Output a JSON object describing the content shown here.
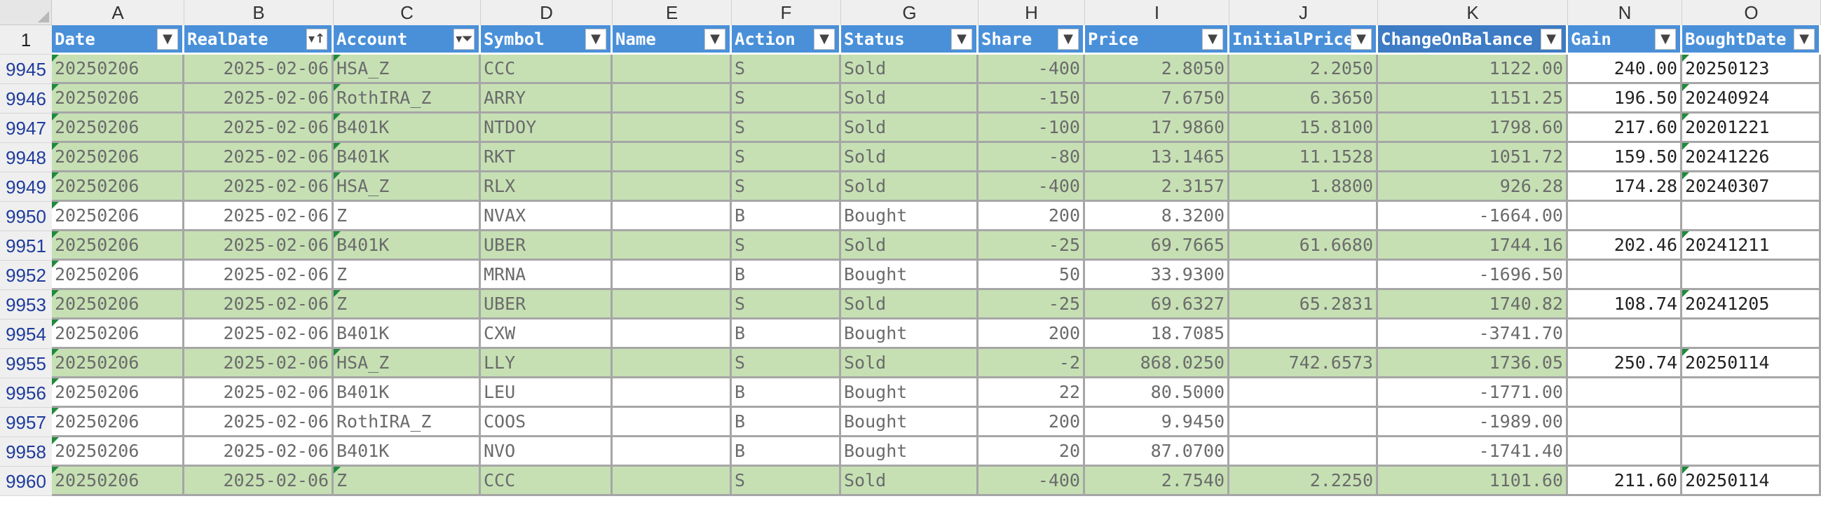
{
  "column_letters": [
    "A",
    "B",
    "C",
    "D",
    "E",
    "F",
    "G",
    "H",
    "I",
    "J",
    "K",
    "N",
    "O"
  ],
  "header_row_number": "1",
  "headers": [
    "Date",
    "RealDate",
    "Account",
    "Symbol",
    "Name",
    "Action",
    "Status",
    "Share",
    "Price",
    "InitialPrice",
    "ChangeOnBalance",
    "Gain",
    "BoughtDate"
  ],
  "header_filter_icons": [
    "dropdown",
    "sort-asc-dropdown",
    "filter-active-dropdown",
    "dropdown",
    "dropdown",
    "dropdown",
    "dropdown",
    "dropdown",
    "dropdown",
    "dropdown",
    "dropdown",
    "dropdown",
    "dropdown"
  ],
  "colors": {
    "sold_row": "#c6e0b4",
    "header_fill": "#4a90d9",
    "row_number": "#1e3c9c",
    "error_triangle": "#1f8a3a"
  },
  "rows": [
    {
      "num": "9945",
      "status": "sold",
      "cells": [
        "20250206",
        "2025-02-06",
        "HSA_Z",
        "CCC",
        "",
        "S",
        "Sold",
        "-400",
        "2.8050",
        "2.2050",
        "1122.00",
        "240.00",
        "20250123"
      ]
    },
    {
      "num": "9946",
      "status": "sold",
      "cells": [
        "20250206",
        "2025-02-06",
        "RothIRA_Z",
        "ARRY",
        "",
        "S",
        "Sold",
        "-150",
        "7.6750",
        "6.3650",
        "1151.25",
        "196.50",
        "20240924"
      ]
    },
    {
      "num": "9947",
      "status": "sold",
      "cells": [
        "20250206",
        "2025-02-06",
        "B401K",
        "NTDOY",
        "",
        "S",
        "Sold",
        "-100",
        "17.9860",
        "15.8100",
        "1798.60",
        "217.60",
        "20201221"
      ]
    },
    {
      "num": "9948",
      "status": "sold",
      "cells": [
        "20250206",
        "2025-02-06",
        "B401K",
        "RKT",
        "",
        "S",
        "Sold",
        "-80",
        "13.1465",
        "11.1528",
        "1051.72",
        "159.50",
        "20241226"
      ]
    },
    {
      "num": "9949",
      "status": "sold",
      "cells": [
        "20250206",
        "2025-02-06",
        "HSA_Z",
        "RLX",
        "",
        "S",
        "Sold",
        "-400",
        "2.3157",
        "1.8800",
        "926.28",
        "174.28",
        "20240307"
      ]
    },
    {
      "num": "9950",
      "status": "bought",
      "cells": [
        "20250206",
        "2025-02-06",
        "Z",
        "NVAX",
        "",
        "B",
        "Bought",
        "200",
        "8.3200",
        "",
        "-1664.00",
        "",
        ""
      ]
    },
    {
      "num": "9951",
      "status": "sold",
      "cells": [
        "20250206",
        "2025-02-06",
        "B401K",
        "UBER",
        "",
        "S",
        "Sold",
        "-25",
        "69.7665",
        "61.6680",
        "1744.16",
        "202.46",
        "20241211"
      ]
    },
    {
      "num": "9952",
      "status": "bought",
      "cells": [
        "20250206",
        "2025-02-06",
        "Z",
        "MRNA",
        "",
        "B",
        "Bought",
        "50",
        "33.9300",
        "",
        "-1696.50",
        "",
        ""
      ]
    },
    {
      "num": "9953",
      "status": "sold",
      "cells": [
        "20250206",
        "2025-02-06",
        "Z",
        "UBER",
        "",
        "S",
        "Sold",
        "-25",
        "69.6327",
        "65.2831",
        "1740.82",
        "108.74",
        "20241205"
      ]
    },
    {
      "num": "9954",
      "status": "bought",
      "cells": [
        "20250206",
        "2025-02-06",
        "B401K",
        "CXW",
        "",
        "B",
        "Bought",
        "200",
        "18.7085",
        "",
        "-3741.70",
        "",
        ""
      ]
    },
    {
      "num": "9955",
      "status": "sold",
      "cells": [
        "20250206",
        "2025-02-06",
        "HSA_Z",
        "LLY",
        "",
        "S",
        "Sold",
        "-2",
        "868.0250",
        "742.6573",
        "1736.05",
        "250.74",
        "20250114"
      ]
    },
    {
      "num": "9956",
      "status": "bought",
      "cells": [
        "20250206",
        "2025-02-06",
        "B401K",
        "LEU",
        "",
        "B",
        "Bought",
        "22",
        "80.5000",
        "",
        "-1771.00",
        "",
        ""
      ]
    },
    {
      "num": "9957",
      "status": "bought",
      "cells": [
        "20250206",
        "2025-02-06",
        "RothIRA_Z",
        "COOS",
        "",
        "B",
        "Bought",
        "200",
        "9.9450",
        "",
        "-1989.00",
        "",
        ""
      ]
    },
    {
      "num": "9958",
      "status": "bought",
      "cells": [
        "20250206",
        "2025-02-06",
        "B401K",
        "NVO",
        "",
        "B",
        "Bought",
        "20",
        "87.0700",
        "",
        "-1741.40",
        "",
        ""
      ]
    },
    {
      "num": "9960",
      "status": "sold",
      "cells": [
        "20250206",
        "2025-02-06",
        "Z",
        "CCC",
        "",
        "S",
        "Sold",
        "-400",
        "2.7540",
        "2.2250",
        "1101.60",
        "211.60",
        "20250114"
      ]
    }
  ]
}
